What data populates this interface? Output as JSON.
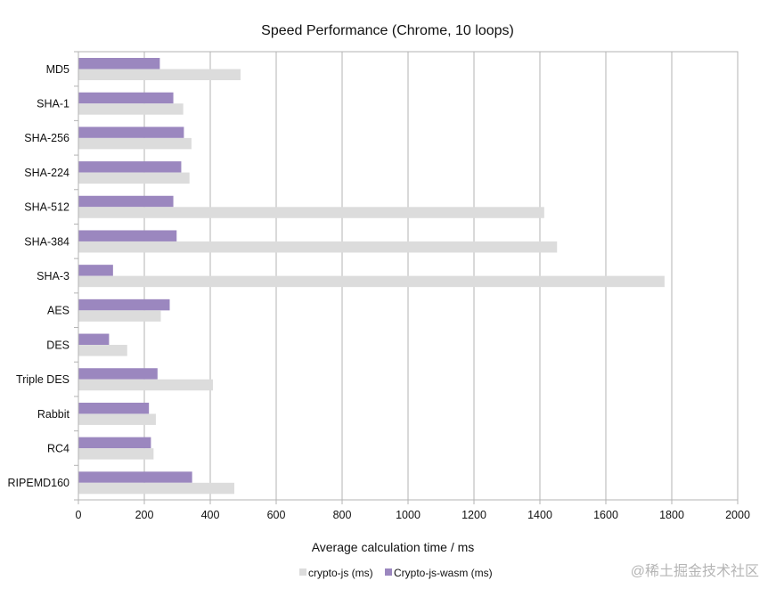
{
  "chart_data": {
    "type": "bar",
    "orientation": "horizontal",
    "title": "Speed Performance (Chrome, 10 loops)",
    "xlabel": "Average calculation time / ms",
    "ylabel": "",
    "xlim": [
      0,
      2000
    ],
    "xticks": [
      "0",
      "200",
      "400",
      "600",
      "800",
      "1000",
      "1200",
      "1400",
      "1600",
      "1800",
      "2000"
    ],
    "grid": true,
    "legend_position": "bottom",
    "categories": [
      "MD5",
      "SHA-1",
      "SHA-256",
      "SHA-224",
      "SHA-512",
      "SHA-384",
      "SHA-3",
      "AES",
      "DES",
      "Triple DES",
      "Rabbit",
      "RC4",
      "RIPEMD160"
    ],
    "series": [
      {
        "name": "Crypto-js-wasm (ms)",
        "color": "#9b87bf",
        "values": [
          247,
          288,
          320,
          312,
          288,
          298,
          105,
          277,
          93,
          240,
          214,
          220,
          345
        ]
      },
      {
        "name": "crypto-js (ms)",
        "color": "#dcdcdc",
        "values": [
          492,
          318,
          343,
          337,
          1413,
          1452,
          1778,
          250,
          148,
          408,
          235,
          228,
          473
        ]
      }
    ],
    "legend": [
      "crypto-js (ms)",
      "Crypto-js-wasm (ms)"
    ]
  },
  "watermark": "@稀土掘金技术社区"
}
